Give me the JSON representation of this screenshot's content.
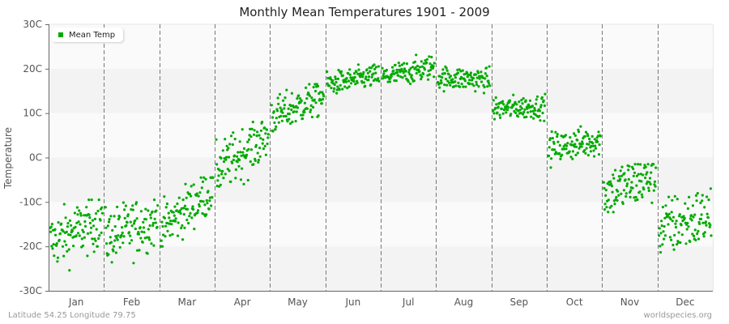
{
  "chart_data": {
    "type": "scatter",
    "title": "Monthly Mean Temperatures 1901 - 2009",
    "xlabel": "",
    "ylabel": "Temperature",
    "ylim": [
      -30,
      30
    ],
    "y_ticks": [
      "30C",
      "20C",
      "10C",
      "0C",
      "-10C",
      "-20C",
      "-30C"
    ],
    "y_tick_values": [
      30,
      20,
      10,
      0,
      -10,
      -20,
      -30
    ],
    "categories": [
      "Jan",
      "Feb",
      "Mar",
      "Apr",
      "May",
      "Jun",
      "Jul",
      "Aug",
      "Sep",
      "Oct",
      "Nov",
      "Dec"
    ],
    "grid": {
      "horizontal_bands": true,
      "vertical_dashed_month_separators": true
    },
    "legend": {
      "position": "top-left",
      "entries": [
        "Mean Temp"
      ]
    },
    "series": [
      {
        "name": "Mean Temp",
        "color": "#00aa00",
        "points_per_month": 109,
        "monthly_summary": [
          {
            "month": "Jan",
            "mean": -18.5,
            "min": -27.5,
            "max": -9.5,
            "start": -19,
            "end": -14
          },
          {
            "month": "Feb",
            "mean": -17.5,
            "min": -27.5,
            "max": -9.5,
            "start": -18,
            "end": -14
          },
          {
            "month": "Mar",
            "mean": -11.0,
            "min": -20.0,
            "max": -4.5,
            "start": -16,
            "end": -7
          },
          {
            "month": "Apr",
            "mean": 2.0,
            "min": -8.5,
            "max": 8.0,
            "start": -3,
            "end": 5
          },
          {
            "month": "May",
            "mean": 11.0,
            "min": 4.5,
            "max": 16.5,
            "start": 9,
            "end": 14
          },
          {
            "month": "Jun",
            "mean": 17.5,
            "min": 14.0,
            "max": 21.5,
            "start": 16.5,
            "end": 18.5
          },
          {
            "month": "Jul",
            "mean": 19.5,
            "min": 15.5,
            "max": 23.5,
            "start": 18,
            "end": 20.5
          },
          {
            "month": "Aug",
            "mean": 17.0,
            "min": 13.5,
            "max": 21.0,
            "start": 18,
            "end": 17.5
          },
          {
            "month": "Sep",
            "mean": 11.0,
            "min": 7.5,
            "max": 15.0,
            "start": 11,
            "end": 11.5
          },
          {
            "month": "Oct",
            "mean": 3.0,
            "min": -3.0,
            "max": 7.0,
            "start": 2,
            "end": 4
          },
          {
            "month": "Nov",
            "mean": -7.5,
            "min": -18.5,
            "max": -1.5,
            "start": -8,
            "end": -4
          },
          {
            "month": "Dec",
            "mean": -15.0,
            "min": -26.5,
            "max": -7.0,
            "start": -16,
            "end": -13
          }
        ]
      }
    ]
  },
  "legend_label": "Mean Temp",
  "footer": {
    "location": "Latitude 54.25 Longitude 79.75",
    "source": "worldspecies.org"
  },
  "colors": {
    "dot": "#00aa00",
    "band_light": "#fafafa",
    "band_dark": "#f3f3f3",
    "axis": "#666666",
    "separator": "#777777"
  }
}
